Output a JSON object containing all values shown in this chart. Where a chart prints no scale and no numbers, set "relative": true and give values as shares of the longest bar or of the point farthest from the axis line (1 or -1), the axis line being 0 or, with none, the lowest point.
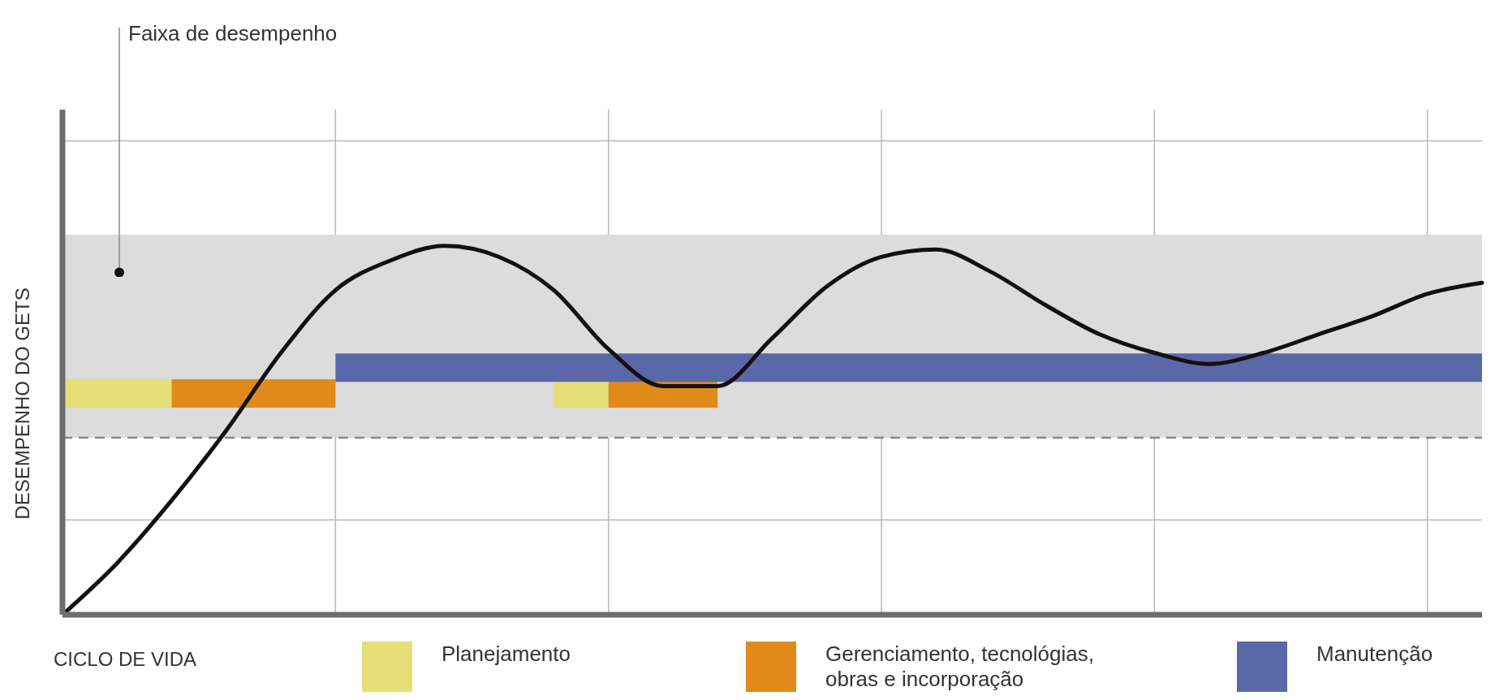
{
  "chart_data": {
    "type": "line",
    "relative": true,
    "xlabel": "CICLO DE VIDA",
    "ylabel": "DESEMPENHO DO GETS",
    "grid": true,
    "legend": "bottom",
    "marker": "none",
    "line_style": "solid",
    "categories": [
      null,
      null,
      null,
      null,
      null,
      null,
      null,
      null,
      null,
      null,
      null,
      null,
      null,
      null,
      null,
      null,
      null,
      null,
      null,
      null,
      null,
      null,
      null,
      null,
      null,
      null,
      null
    ],
    "series": [
      {
        "name": "Planejamento",
        "color": "#e6df78",
        "values": [
          0.6,
          0.6,
          0.6,
          null,
          null,
          null,
          null,
          null,
          null,
          0.6,
          0.6,
          null,
          null,
          null,
          null,
          null,
          null,
          null,
          null,
          null,
          null,
          null,
          null,
          null,
          null,
          null,
          null
        ]
      },
      {
        "name": "Gerenciamento, tecnológias, obras e incorporação",
        "color": "#e08a1c",
        "values": [
          null,
          null,
          0.6,
          0.6,
          0.6,
          0.6,
          null,
          null,
          null,
          null,
          0.6,
          0.6,
          0.6,
          null,
          null,
          null,
          null,
          null,
          null,
          null,
          null,
          null,
          null,
          null,
          null,
          null,
          null
        ]
      },
      {
        "name": "Manutenção",
        "color": "#5a67a8",
        "values": [
          null,
          null,
          null,
          null,
          null,
          0.67,
          0.67,
          0.67,
          0.67,
          0.67,
          0.67,
          0.67,
          0.67,
          0.67,
          0.67,
          0.67,
          0.67,
          0.67,
          0.67,
          0.67,
          0.67,
          0.67,
          0.67,
          0.67,
          0.67,
          0.67,
          0.67
        ]
      },
      {
        "color": "#111111",
        "values": [
          0,
          0.14,
          0.31,
          0.5,
          0.71,
          0.88,
          0.96,
          1,
          0.97,
          0.88,
          0.72,
          0.62,
          0.62,
          0.75,
          0.89,
          0.97,
          0.99,
          0.93,
          0.84,
          0.76,
          0.71,
          0.68,
          0.71,
          0.76,
          0.81,
          0.87,
          0.9
        ]
      }
    ],
    "bands": [
      {
        "axis": "y",
        "from": 0.48,
        "to": 1.03,
        "label": "Faixa de desempenho",
        "color": "#dcdcdc"
      }
    ],
    "ref_lines": [
      {
        "axis": "y",
        "value": 0.48,
        "color": "#888888",
        "line_style": "dashed"
      }
    ]
  }
}
